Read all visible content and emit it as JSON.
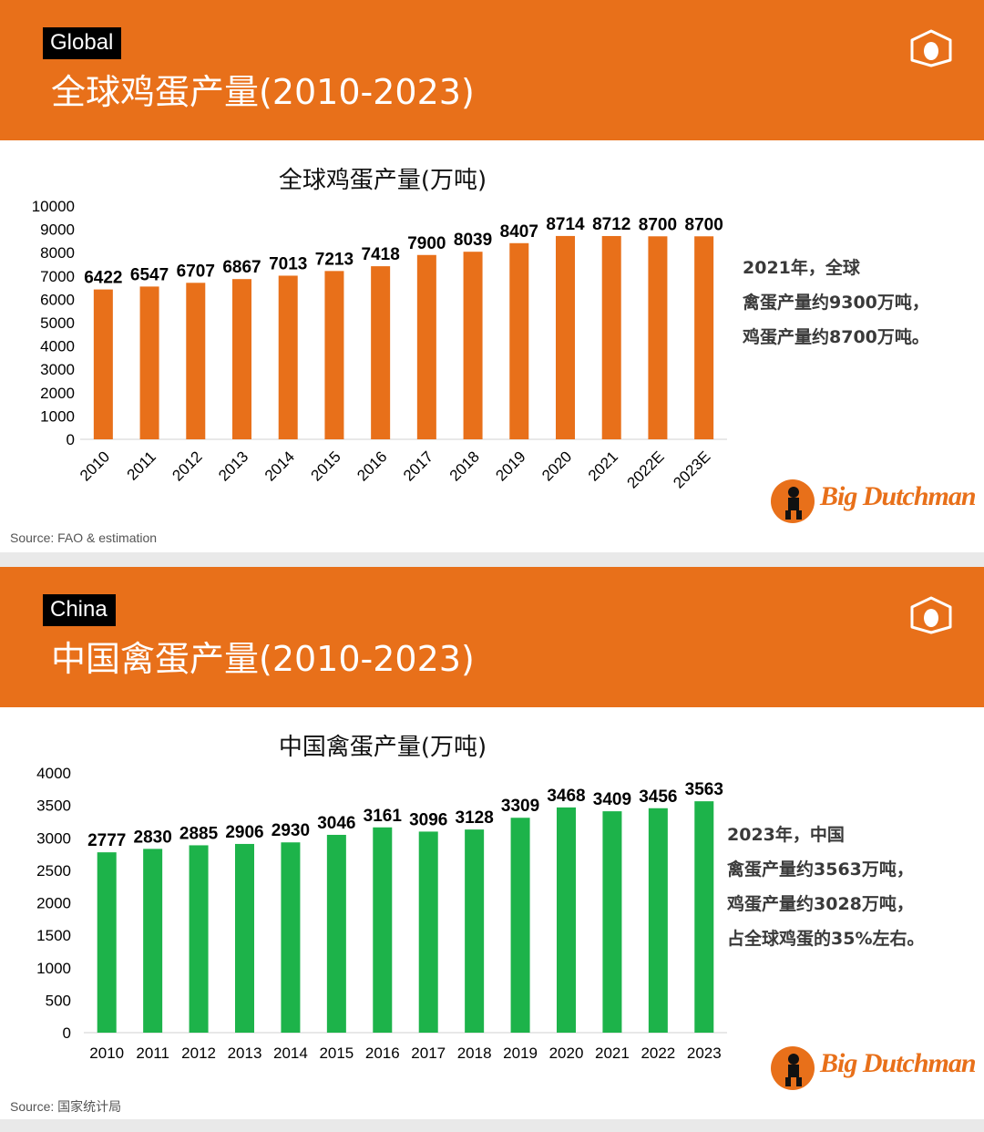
{
  "panels": [
    {
      "tag": "Global",
      "header_title": "全球鸡蛋产量(2010-2023)",
      "source": "Source: FAO & estimation",
      "note": [
        "2021年，全球",
        "禽蛋产量约9300万吨，",
        "鸡蛋产量约8700万吨。"
      ],
      "logo_text": "Big Dutchman",
      "bar_color": "#e8701a",
      "egg_icon": "egg-badge-icon"
    },
    {
      "tag": "China",
      "header_title": "中国禽蛋产量(2010-2023)",
      "source": "Source: 国家统计局",
      "note": [
        "2023年，中国",
        "禽蛋产量约3563万吨，",
        "鸡蛋产量约3028万吨，",
        "占全球鸡蛋的35%左右。"
      ],
      "logo_text": "Big Dutchman",
      "bar_color": "#1db34a",
      "egg_icon": "egg-badge-icon"
    }
  ],
  "chart_data": [
    {
      "type": "bar",
      "title": "全球鸡蛋产量(万吨)",
      "categories": [
        "2010",
        "2011",
        "2012",
        "2013",
        "2014",
        "2015",
        "2016",
        "2017",
        "2018",
        "2019",
        "2020",
        "2021",
        "2022E",
        "2023E"
      ],
      "values": [
        6422,
        6547,
        6707,
        6867,
        7013,
        7213,
        7418,
        7900,
        8039,
        8407,
        8714,
        8712,
        8700,
        8700
      ],
      "ylim": [
        0,
        10000
      ],
      "yticks": [
        0,
        1000,
        2000,
        3000,
        4000,
        5000,
        6000,
        7000,
        8000,
        9000,
        10000
      ],
      "xlabel": "",
      "ylabel": "",
      "color": "#e8701a",
      "grid": false,
      "x_tick_rotation": "-45",
      "data_labels": true
    },
    {
      "type": "bar",
      "title": "中国禽蛋产量(万吨)",
      "categories": [
        "2010",
        "2011",
        "2012",
        "2013",
        "2014",
        "2015",
        "2016",
        "2017",
        "2018",
        "2019",
        "2020",
        "2021",
        "2022",
        "2023"
      ],
      "values": [
        2777,
        2830,
        2885,
        2906,
        2930,
        3046,
        3161,
        3096,
        3128,
        3309,
        3468,
        3409,
        3456,
        3563
      ],
      "ylim": [
        0,
        4000
      ],
      "yticks": [
        0,
        500,
        1000,
        1500,
        2000,
        2500,
        3000,
        3500,
        4000
      ],
      "xlabel": "",
      "ylabel": "",
      "color": "#1db34a",
      "grid": false,
      "x_tick_rotation": "0",
      "data_labels": true
    }
  ]
}
